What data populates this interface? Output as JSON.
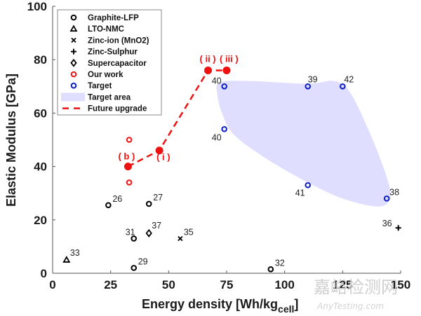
{
  "chart_data": {
    "type": "scatter",
    "title": "",
    "xlabel": "Energy density [Wh/kg",
    "xlabel_sub": "cell",
    "xlabel_end": "]",
    "ylabel": "Elastic Modulus [GPa]",
    "xlim": [
      0,
      150
    ],
    "ylim": [
      0,
      100
    ],
    "xticks": [
      0,
      25,
      50,
      75,
      100,
      125,
      150
    ],
    "yticks": [
      0,
      20,
      40,
      60,
      80,
      100
    ],
    "grid": false,
    "legend_position": "top-left",
    "colors": {
      "black": "#000000",
      "our_work": "#ee1111",
      "target": "#0a1ec8",
      "target_area": "#e0deff",
      "future_upgrade": "#ee1111"
    },
    "series": [
      {
        "name": "Graphite-LFP",
        "marker": "circle",
        "color": "#000000",
        "points": [
          {
            "x": 24,
            "y": 25.5,
            "label": "26"
          },
          {
            "x": 41.5,
            "y": 26,
            "label": "27"
          },
          {
            "x": 35,
            "y": 13,
            "label": "31"
          },
          {
            "x": 35,
            "y": 2,
            "label": "29"
          },
          {
            "x": 94,
            "y": 1.5,
            "label": "32"
          }
        ]
      },
      {
        "name": "LTO-NMC",
        "marker": "triangle",
        "color": "#000000",
        "points": [
          {
            "x": 6,
            "y": 5,
            "label": "33"
          }
        ]
      },
      {
        "name": "Zinc-ion (MnO2)",
        "marker": "x",
        "color": "#000000",
        "points": [
          {
            "x": 55,
            "y": 13,
            "label": "35"
          }
        ]
      },
      {
        "name": "Zinc-Sulphur",
        "marker": "plus",
        "color": "#000000",
        "points": [
          {
            "x": 149,
            "y": 17,
            "label": "36"
          }
        ]
      },
      {
        "name": "Supercapacitor",
        "marker": "diamond",
        "color": "#000000",
        "points": [
          {
            "x": 41.5,
            "y": 15,
            "label": "37"
          }
        ]
      },
      {
        "name": "Our work",
        "marker": "circle",
        "color": "#ee1111",
        "points": [
          {
            "x": 33,
            "y": 50,
            "label": ""
          },
          {
            "x": 33,
            "y": 34,
            "label": ""
          }
        ]
      },
      {
        "name": "Target",
        "marker": "circle",
        "color": "#0a1ec8",
        "points": [
          {
            "x": 74,
            "y": 70,
            "label": "40"
          },
          {
            "x": 74,
            "y": 54,
            "label": "40"
          },
          {
            "x": 110,
            "y": 70,
            "label": "39"
          },
          {
            "x": 125,
            "y": 70,
            "label": "42"
          },
          {
            "x": 110,
            "y": 33,
            "label": "41"
          },
          {
            "x": 144,
            "y": 28,
            "label": "38"
          }
        ]
      },
      {
        "name": "Target area",
        "marker": "area",
        "color": "#e0deff",
        "outline": [
          {
            "x": 72,
            "y": 71.5
          },
          {
            "x": 85,
            "y": 72
          },
          {
            "x": 110,
            "y": 71
          },
          {
            "x": 121,
            "y": 72
          },
          {
            "x": 128,
            "y": 68
          },
          {
            "x": 137,
            "y": 52
          },
          {
            "x": 144,
            "y": 36
          },
          {
            "x": 145.5,
            "y": 28
          },
          {
            "x": 140,
            "y": 25
          },
          {
            "x": 125,
            "y": 28
          },
          {
            "x": 110,
            "y": 34
          },
          {
            "x": 92,
            "y": 43
          },
          {
            "x": 78,
            "y": 52
          },
          {
            "x": 73,
            "y": 60
          },
          {
            "x": 71,
            "y": 67
          }
        ]
      },
      {
        "name": "Future upgrade",
        "marker": "dashed-line",
        "color": "#ee1111",
        "points": [
          {
            "x": 32.5,
            "y": 40,
            "label": "( b )"
          },
          {
            "x": 46,
            "y": 46,
            "label": "( i )"
          },
          {
            "x": 67,
            "y": 76,
            "label": "( ii )"
          },
          {
            "x": 75,
            "y": 76,
            "label": "( iii )"
          }
        ]
      }
    ],
    "legend": [
      {
        "label": "Graphite-LFP",
        "marker": "circle",
        "color": "#000000"
      },
      {
        "label": "LTO-NMC",
        "marker": "triangle",
        "color": "#000000"
      },
      {
        "label": "Zinc-ion (MnO2)",
        "marker": "x",
        "color": "#000000"
      },
      {
        "label": "Zinc-Sulphur",
        "marker": "plus",
        "color": "#000000"
      },
      {
        "label": "Supercapacitor",
        "marker": "diamond",
        "color": "#000000"
      },
      {
        "label": "Our work",
        "marker": "circle",
        "color": "#ee1111"
      },
      {
        "label": "Target",
        "marker": "circle",
        "color": "#0a1ec8"
      },
      {
        "label": "Target area",
        "marker": "area",
        "color": "#e0deff"
      },
      {
        "label": "Future upgrade",
        "marker": "dashed-line",
        "color": "#ee1111"
      }
    ]
  },
  "watermark": {
    "cn": "嘉峪检测网",
    "en": "AnyTesting.com"
  }
}
